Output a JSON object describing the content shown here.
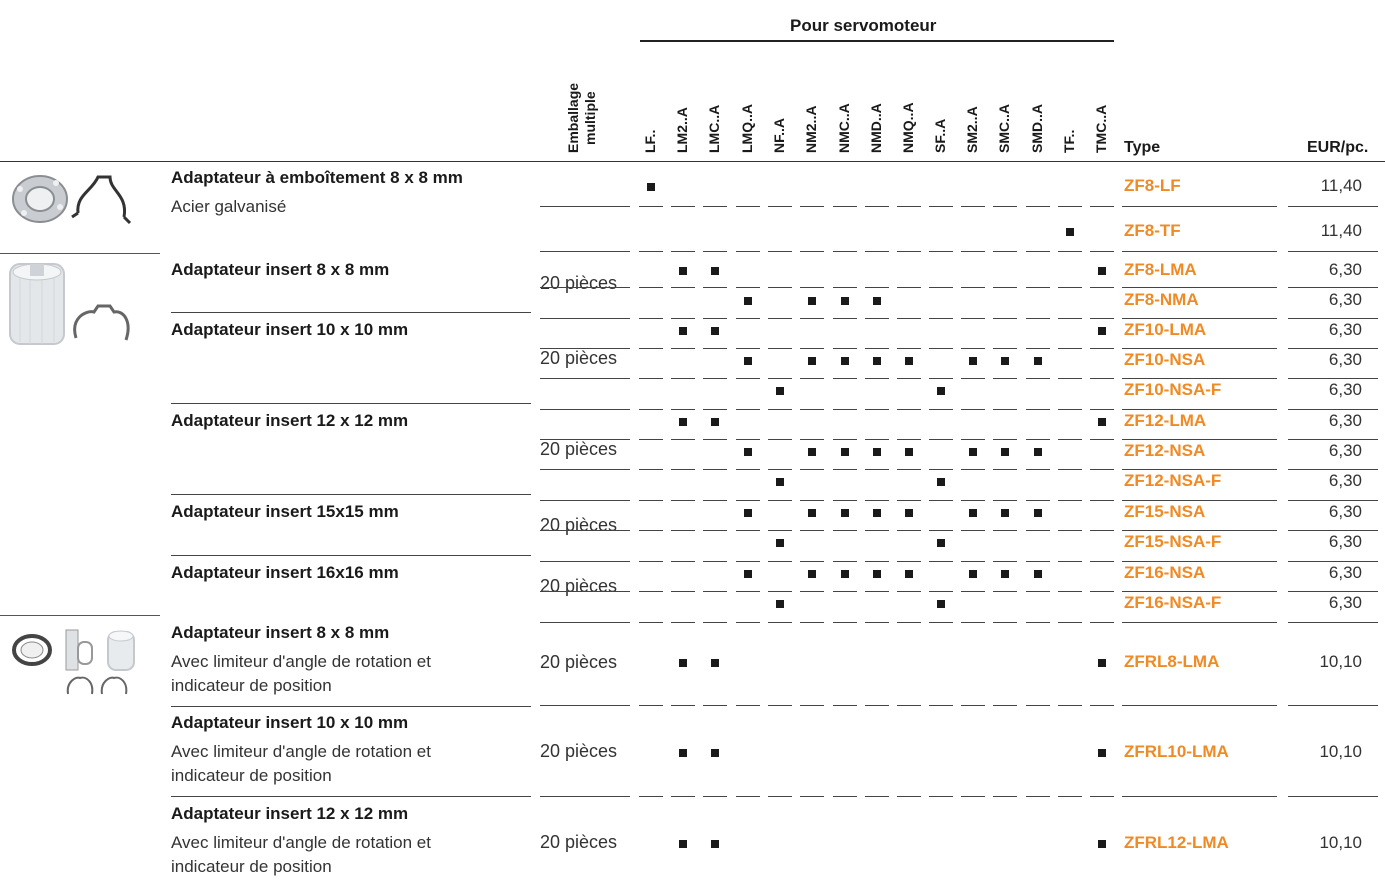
{
  "header": {
    "group_title": "Pour servomoteur",
    "pack_label": "Emballage\nmultiple",
    "pack_line1": "Emballage",
    "pack_line2": "multiple",
    "type_label": "Type",
    "eur_label": "EUR/pc."
  },
  "columns": [
    "LF..",
    "LM2..A",
    "LMC..A",
    "LMQ..A",
    "NF..A",
    "NM2..A",
    "NMC..A",
    "NMD..A",
    "NMQ..A",
    "SF..A",
    "SM2..A",
    "SMC..A",
    "SMD..A",
    "TF..",
    "TMC..A"
  ],
  "groups": [
    {
      "name": "Adaptateur à emboîtement 8 x 8 mm",
      "sub": "Acier galvanisé",
      "pack": ""
    },
    {
      "name": "Adaptateur insert 8 x 8 mm",
      "sub": "",
      "pack": "20 pièces"
    },
    {
      "name": "Adaptateur insert 10 x 10 mm",
      "sub": "",
      "pack": "20 pièces"
    },
    {
      "name": "Adaptateur insert 12 x 12 mm",
      "sub": "",
      "pack": "20 pièces"
    },
    {
      "name": "Adaptateur insert 15x15 mm",
      "sub": "",
      "pack": "20 pièces"
    },
    {
      "name": "Adaptateur insert 16x16 mm",
      "sub": "",
      "pack": "20 pièces"
    },
    {
      "name": "Adaptateur insert 8 x 8 mm",
      "sub1": "Avec limiteur d'angle de rotation et",
      "sub2": "indicateur de position",
      "pack": "20 pièces"
    },
    {
      "name": "Adaptateur insert 10 x 10 mm",
      "sub1": "Avec limiteur d'angle de rotation et",
      "sub2": "indicateur de position",
      "pack": "20 pièces"
    },
    {
      "name": "Adaptateur insert 12 x 12 mm",
      "sub1": "Avec limiteur d'angle de rotation et",
      "sub2": "indicateur de position",
      "pack": "20 pièces"
    }
  ],
  "rows": [
    {
      "code": "ZF8-LF",
      "price": "11,40",
      "marks": [
        0
      ]
    },
    {
      "code": "ZF8-TF",
      "price": "11,40",
      "marks": [
        13
      ]
    },
    {
      "code": "ZF8-LMA",
      "price": "6,30",
      "marks": [
        1,
        2,
        14
      ]
    },
    {
      "code": "ZF8-NMA",
      "price": "6,30",
      "marks": [
        3,
        5,
        6,
        7
      ]
    },
    {
      "code": "ZF10-LMA",
      "price": "6,30",
      "marks": [
        1,
        2,
        14
      ]
    },
    {
      "code": "ZF10-NSA",
      "price": "6,30",
      "marks": [
        3,
        5,
        6,
        7,
        8,
        10,
        11,
        12
      ]
    },
    {
      "code": "ZF10-NSA-F",
      "price": "6,30",
      "marks": [
        4,
        9
      ]
    },
    {
      "code": "ZF12-LMA",
      "price": "6,30",
      "marks": [
        1,
        2,
        14
      ]
    },
    {
      "code": "ZF12-NSA",
      "price": "6,30",
      "marks": [
        3,
        5,
        6,
        7,
        8,
        10,
        11,
        12
      ]
    },
    {
      "code": "ZF12-NSA-F",
      "price": "6,30",
      "marks": [
        4,
        9
      ]
    },
    {
      "code": "ZF15-NSA",
      "price": "6,30",
      "marks": [
        3,
        5,
        6,
        7,
        8,
        10,
        11,
        12
      ]
    },
    {
      "code": "ZF15-NSA-F",
      "price": "6,30",
      "marks": [
        4,
        9
      ]
    },
    {
      "code": "ZF16-NSA",
      "price": "6,30",
      "marks": [
        3,
        5,
        6,
        7,
        8,
        10,
        11,
        12
      ]
    },
    {
      "code": "ZF16-NSA-F",
      "price": "6,30",
      "marks": [
        4,
        9
      ]
    },
    {
      "code": "ZFRL8-LMA",
      "price": "10,10",
      "marks": [
        1,
        2,
        14
      ]
    },
    {
      "code": "ZFRL10-LMA",
      "price": "10,10",
      "marks": [
        1,
        2,
        14
      ]
    },
    {
      "code": "ZFRL12-LMA",
      "price": "10,10",
      "marks": [
        1,
        2,
        14
      ]
    }
  ],
  "colors": {
    "accent": "#f08a24",
    "text": "#222222",
    "rule": "#444444"
  },
  "images": [
    "clip-adapter-image",
    "insert-adapter-image",
    "rotation-limiter-adapter-image"
  ]
}
